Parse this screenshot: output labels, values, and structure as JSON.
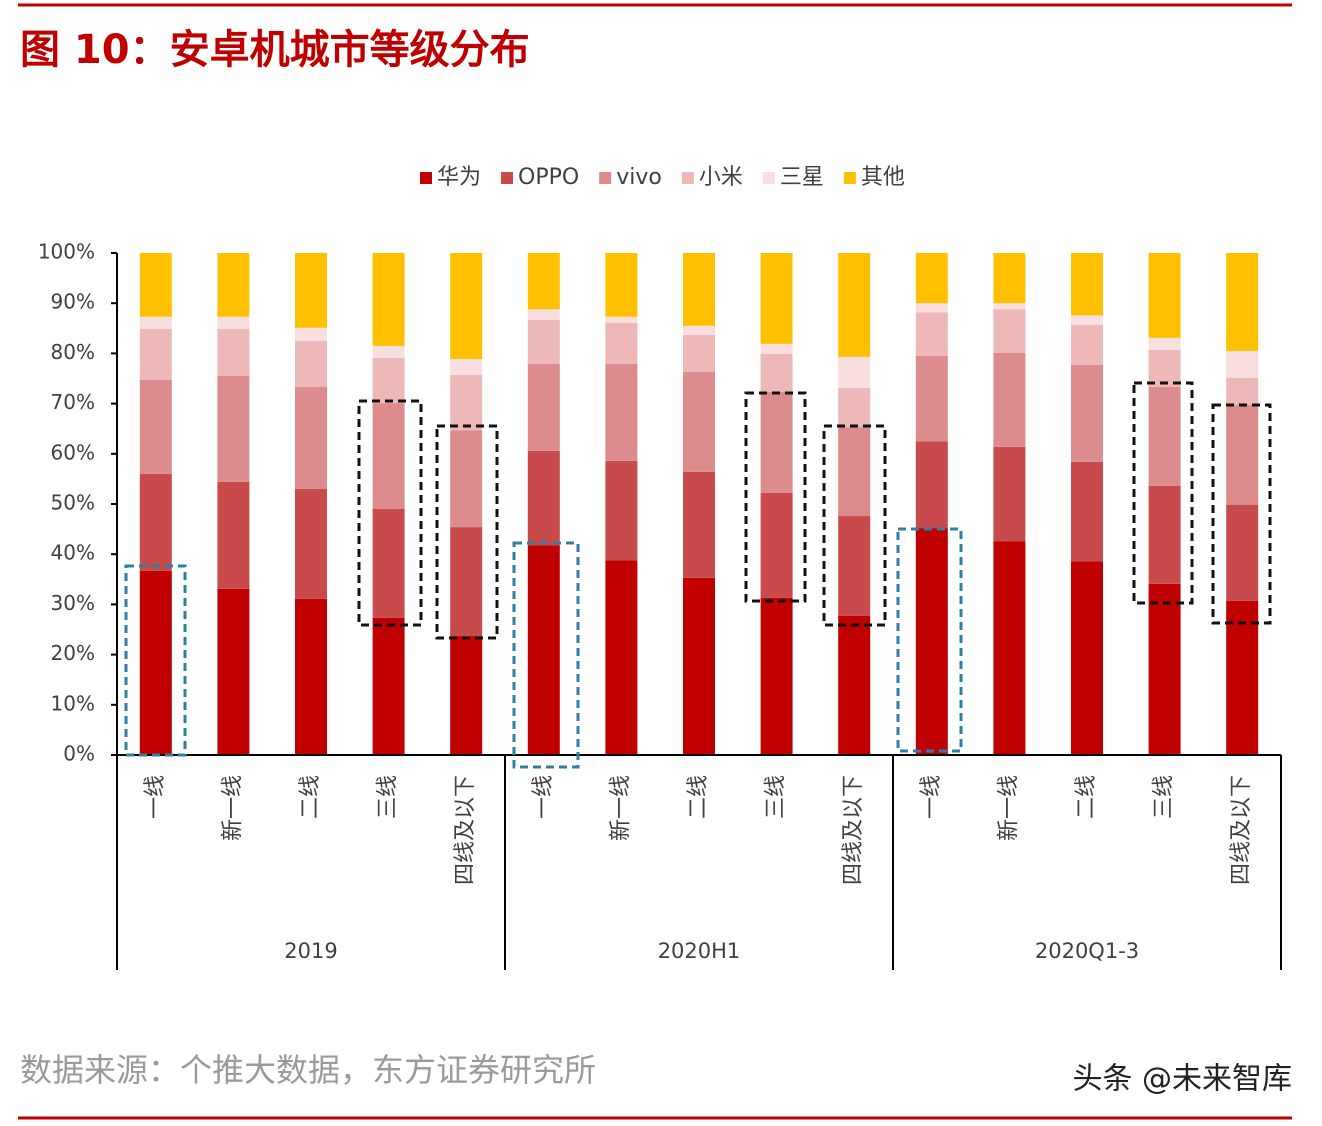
{
  "chart_data": {
    "type": "stacked-bar",
    "title": "图 10：安卓机城市等级分布",
    "categories": [
      "一线",
      "新一线",
      "二线",
      "三线",
      "四线及以下",
      "一线",
      "新一线",
      "二线",
      "三线",
      "四线及以下",
      "一线",
      "新一线",
      "二线",
      "三线",
      "四线及以下"
    ],
    "groups": [
      "2019",
      "2020H1",
      "2020Q1-3"
    ],
    "series": [
      {
        "name": "华为",
        "color": "#c00000",
        "values": [
          36.7,
          33.1,
          31.1,
          27.3,
          23.7,
          41.8,
          38.8,
          35.3,
          31.3,
          27.7,
          45.2,
          42.6,
          38.6,
          34.1,
          30.7
        ]
      },
      {
        "name": "OPPO",
        "color": "#c94a4a",
        "values": [
          19.3,
          21.3,
          21.9,
          21.7,
          21.7,
          18.8,
          19.8,
          21.1,
          20.9,
          19.9,
          17.3,
          18.8,
          19.8,
          19.5,
          19.1
        ]
      },
      {
        "name": "vivo",
        "color": "#dc8c8c",
        "values": [
          18.7,
          21.1,
          20.3,
          21.1,
          19.3,
          17.3,
          19.3,
          19.9,
          20.1,
          17.7,
          17.0,
          18.7,
          19.3,
          19.7,
          19.9
        ]
      },
      {
        "name": "小米",
        "color": "#ecb8b8",
        "values": [
          10.2,
          9.4,
          9.2,
          9.0,
          11.0,
          8.8,
          8.2,
          7.4,
          7.6,
          7.8,
          8.7,
          8.7,
          8.0,
          7.4,
          5.4
        ]
      },
      {
        "name": "三星",
        "color": "#f8dede",
        "values": [
          2.4,
          2.4,
          2.6,
          2.4,
          3.2,
          2.1,
          1.2,
          1.8,
          2.0,
          6.2,
          1.8,
          1.2,
          1.9,
          2.4,
          5.4
        ]
      },
      {
        "name": "其他",
        "color": "#ffc000",
        "values": [
          12.7,
          12.7,
          14.9,
          18.5,
          21.1,
          11.2,
          12.7,
          14.5,
          18.1,
          20.7,
          10.0,
          10.0,
          12.4,
          16.9,
          19.5
        ]
      }
    ],
    "ylim": [
      0,
      100
    ],
    "yticks": [
      {
        "value": 0,
        "label": "0%"
      },
      {
        "value": 10,
        "label": "10%"
      },
      {
        "value": 20,
        "label": "20%"
      },
      {
        "value": 30,
        "label": "30%"
      },
      {
        "value": 40,
        "label": "40%"
      },
      {
        "value": 50,
        "label": "50%"
      },
      {
        "value": 60,
        "label": "60%"
      },
      {
        "value": 70,
        "label": "70%"
      },
      {
        "value": 80,
        "label": "80%"
      },
      {
        "value": 90,
        "label": "90%"
      },
      {
        "value": 100,
        "label": "100%"
      }
    ],
    "source": "数据来源：个推大数据，东方证券研究所",
    "watermark": "头条 @未来智库"
  }
}
